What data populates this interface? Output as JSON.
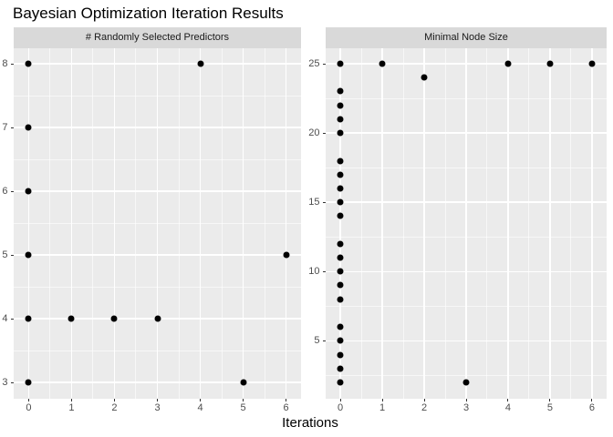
{
  "chart_data": {
    "type": "scatter",
    "title": "Bayesian Optimization Iteration Results",
    "xlabel": "Iterations",
    "ylabel": "",
    "grid": true,
    "legend": null,
    "point_color": "#000000",
    "colors": {
      "panel_bg": "#EBEBEB",
      "strip_bg": "#D9D9D9",
      "gridline": "#FFFFFF",
      "tick_label": "#4D4D4D",
      "tick_mark": "#333333",
      "title_text": "#000000"
    },
    "facets": [
      {
        "label": "# Randomly Selected Predictors",
        "x_ticks": [
          0,
          1,
          2,
          3,
          4,
          5,
          6
        ],
        "y_ticks": [
          3,
          4,
          5,
          6,
          7,
          8
        ],
        "xlim": [
          -0.35,
          6.35
        ],
        "ylim": [
          2.75,
          8.25
        ],
        "points": [
          [
            0,
            8
          ],
          [
            0,
            7
          ],
          [
            0,
            6
          ],
          [
            0,
            5
          ],
          [
            0,
            4
          ],
          [
            0,
            3
          ],
          [
            1,
            4
          ],
          [
            2,
            4
          ],
          [
            3,
            4
          ],
          [
            4,
            8
          ],
          [
            5,
            3
          ],
          [
            6,
            5
          ]
        ]
      },
      {
        "label": "Minimal Node Size",
        "x_ticks": [
          0,
          1,
          2,
          3,
          4,
          5,
          6
        ],
        "y_ticks": [
          5,
          10,
          15,
          20,
          25
        ],
        "xlim": [
          -0.35,
          6.35
        ],
        "ylim": [
          0.85,
          26.15
        ],
        "points": [
          [
            0,
            2
          ],
          [
            0,
            3
          ],
          [
            0,
            4
          ],
          [
            0,
            5
          ],
          [
            0,
            6
          ],
          [
            0,
            8
          ],
          [
            0,
            9
          ],
          [
            0,
            10
          ],
          [
            0,
            11
          ],
          [
            0,
            12
          ],
          [
            0,
            14
          ],
          [
            0,
            15
          ],
          [
            0,
            16
          ],
          [
            0,
            17
          ],
          [
            0,
            18
          ],
          [
            0,
            20
          ],
          [
            0,
            21
          ],
          [
            0,
            22
          ],
          [
            0,
            23
          ],
          [
            0,
            25
          ],
          [
            1,
            25
          ],
          [
            2,
            24
          ],
          [
            3,
            2
          ],
          [
            4,
            25
          ],
          [
            5,
            25
          ],
          [
            6,
            25
          ]
        ]
      }
    ]
  }
}
